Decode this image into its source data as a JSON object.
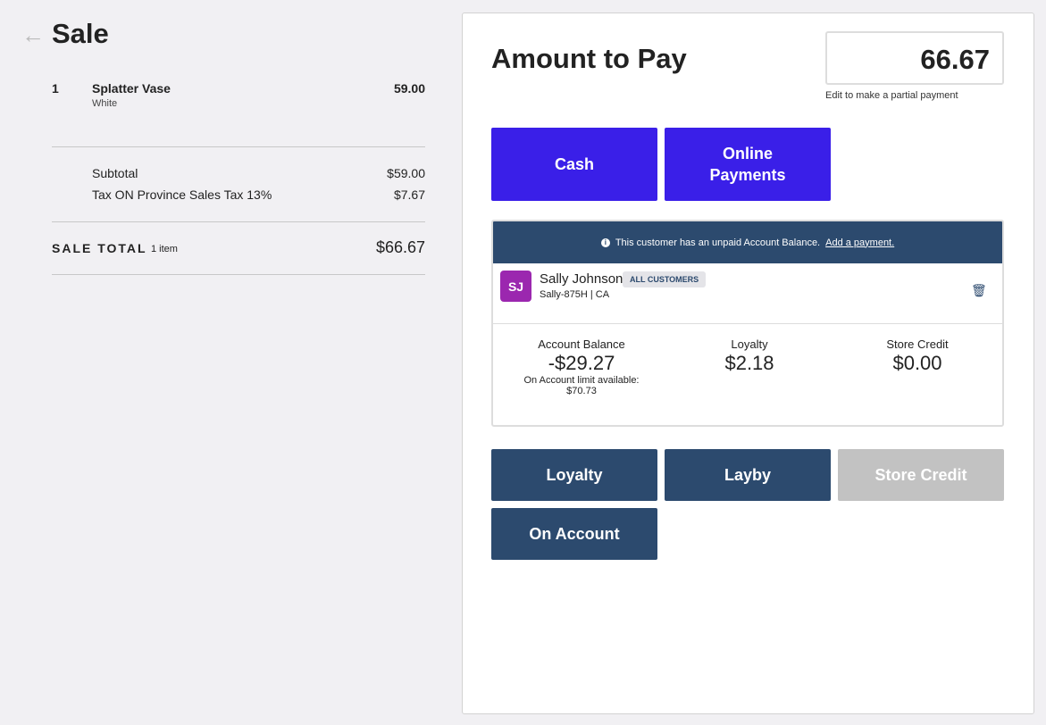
{
  "header": {
    "back_icon": "arrow-left-icon",
    "title": "Sale"
  },
  "line_items": [
    {
      "qty": "1",
      "name": "Splatter Vase",
      "variant": "White",
      "price": "59.00"
    }
  ],
  "summary": {
    "subtotal_label": "Subtotal",
    "subtotal": "$59.00",
    "tax_label": "Tax ON Province Sales Tax 13%",
    "tax": "$7.67",
    "total_label": "SALE TOTAL",
    "item_count": "1 item",
    "total": "$66.67"
  },
  "payment": {
    "title": "Amount to Pay",
    "amount": "66.67",
    "hint": "Edit to make a partial payment",
    "buttons": [
      "Cash",
      "Online Payments"
    ]
  },
  "customer": {
    "notice": "This customer has an unpaid Account Balance.",
    "notice_link": "Add a payment.",
    "initials": "SJ",
    "name": "Sally Johnson",
    "group": "ALL CUSTOMERS",
    "code": "Sally-875H | CA",
    "stats": {
      "balance_label": "Account Balance",
      "balance": "-$29.27",
      "limit_label": "On Account limit available:",
      "limit": "$70.73",
      "loyalty_label": "Loyalty",
      "loyalty": "$2.18",
      "credit_label": "Store Credit",
      "credit": "$0.00"
    }
  },
  "other_buttons": {
    "loyalty": "Loyalty",
    "layby": "Layby",
    "store_credit": "Store Credit",
    "on_account": "On Account"
  },
  "colors": {
    "primary": "#3a1fe8",
    "navy": "#2c4a6e",
    "avatar": "#9b27af",
    "disabled": "#c2c2c2"
  }
}
